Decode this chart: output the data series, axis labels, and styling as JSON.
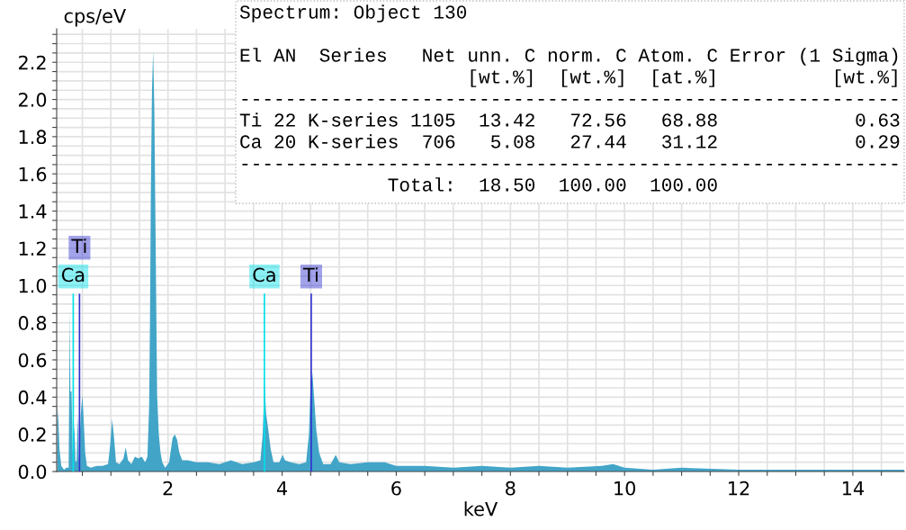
{
  "chart_data": {
    "type": "area",
    "ylabel": "cps/eV",
    "xlabel": "keV",
    "series": [
      {
        "color": "#42a5c8",
        "x": [
          0.06,
          0.08,
          0.1,
          0.13,
          0.18,
          0.22,
          0.26,
          0.28,
          0.29,
          0.31,
          0.33,
          0.36,
          0.38,
          0.4,
          0.42,
          0.44,
          0.47,
          0.5,
          0.52,
          0.55,
          0.58,
          0.65,
          0.75,
          0.85,
          0.95,
          0.99,
          1.02,
          1.05,
          1.09,
          1.15,
          1.22,
          1.26,
          1.3,
          1.36,
          1.42,
          1.48,
          1.54,
          1.6,
          1.64,
          1.67,
          1.685,
          1.7,
          1.72,
          1.74,
          1.76,
          1.78,
          1.8,
          1.81,
          1.84,
          1.87,
          1.9,
          1.95,
          2.02,
          2.08,
          2.12,
          2.16,
          2.2,
          2.25,
          2.35,
          2.5,
          2.7,
          2.9,
          3.1,
          3.3,
          3.5,
          3.62,
          3.66,
          3.69,
          3.72,
          3.76,
          3.8,
          3.85,
          3.95,
          4.01,
          4.05,
          4.15,
          4.3,
          4.42,
          4.47,
          4.5,
          4.53,
          4.56,
          4.6,
          4.65,
          4.72,
          4.85,
          4.94,
          5.0,
          5.2,
          5.5,
          5.8,
          6.0,
          6.5,
          7.0,
          7.5,
          8.0,
          8.5,
          9.0,
          9.6,
          9.8,
          10.0,
          10.5,
          11.0,
          12.0,
          13.0,
          14.0,
          14.9
        ],
        "values": [
          0.36,
          0.27,
          0.12,
          0.03,
          0.01,
          0.02,
          0.02,
          0.87,
          0.43,
          0.43,
          0.1,
          0.25,
          0.05,
          0.06,
          0.31,
          0.05,
          0.3,
          0.41,
          0.3,
          0.1,
          0.03,
          0.02,
          0.03,
          0.03,
          0.04,
          0.15,
          0.28,
          0.2,
          0.05,
          0.04,
          0.07,
          0.13,
          0.06,
          0.04,
          0.08,
          0.07,
          0.08,
          0.05,
          0.08,
          0.35,
          0.82,
          1.5,
          2.05,
          2.26,
          1.97,
          1.36,
          0.73,
          0.41,
          0.2,
          0.1,
          0.05,
          0.02,
          0.05,
          0.18,
          0.2,
          0.17,
          0.1,
          0.06,
          0.06,
          0.05,
          0.05,
          0.04,
          0.06,
          0.04,
          0.05,
          0.06,
          0.2,
          0.47,
          0.31,
          0.22,
          0.12,
          0.05,
          0.05,
          0.09,
          0.06,
          0.05,
          0.04,
          0.05,
          0.2,
          0.48,
          0.53,
          0.4,
          0.22,
          0.1,
          0.04,
          0.04,
          0.09,
          0.05,
          0.04,
          0.05,
          0.05,
          0.03,
          0.03,
          0.02,
          0.03,
          0.02,
          0.03,
          0.02,
          0.03,
          0.04,
          0.02,
          0.01,
          0.02,
          0.01,
          0.01,
          0.01,
          0.01
        ]
      }
    ],
    "xlim": [
      0.05,
      14.9
    ],
    "ylim": [
      0,
      2.38
    ],
    "xticks": [
      {
        "value": 0.5,
        "label": null
      },
      {
        "value": 1,
        "label": null
      },
      {
        "value": 1.5,
        "label": null
      },
      2,
      {
        "value": 2.5,
        "label": null
      },
      {
        "value": 3,
        "label": null
      },
      {
        "value": 3.5,
        "label": null
      },
      4,
      {
        "value": 4.5,
        "label": null
      },
      {
        "value": 5,
        "label": null
      },
      {
        "value": 5.5,
        "label": null
      },
      6,
      {
        "value": 6.5,
        "label": null
      },
      {
        "value": 7,
        "label": null
      },
      {
        "value": 7.5,
        "label": null
      },
      8,
      {
        "value": 8.5,
        "label": null
      },
      {
        "value": 9,
        "label": null
      },
      {
        "value": 9.5,
        "label": null
      },
      10,
      {
        "value": 10.5,
        "label": null
      },
      {
        "value": 11,
        "label": null
      },
      {
        "value": 11.5,
        "label": null
      },
      12,
      {
        "value": 12.5,
        "label": null
      },
      {
        "value": 13,
        "label": null
      },
      {
        "value": 13.5,
        "label": null
      },
      14,
      {
        "value": 14.5,
        "label": null
      }
    ],
    "yticks": [
      {
        "value": 0,
        "label": "0.0"
      },
      {
        "value": 0.05,
        "label": null
      },
      {
        "value": 0.1,
        "label": null
      },
      {
        "value": 0.15,
        "label": null
      },
      0.2,
      {
        "value": 0.25,
        "label": null
      },
      {
        "value": 0.3,
        "label": null
      },
      {
        "value": 0.35,
        "label": null
      },
      0.4,
      {
        "value": 0.45,
        "label": null
      },
      {
        "value": 0.5,
        "label": null
      },
      {
        "value": 0.55,
        "label": null
      },
      0.6,
      {
        "value": 0.65,
        "label": null
      },
      {
        "value": 0.7,
        "label": null
      },
      {
        "value": 0.75,
        "label": null
      },
      0.8,
      {
        "value": 0.85,
        "label": null
      },
      {
        "value": 0.9,
        "label": null
      },
      {
        "value": 0.95,
        "label": null
      },
      {
        "value": 1,
        "label": "1.0"
      },
      {
        "value": 1.05,
        "label": null
      },
      {
        "value": 1.1,
        "label": null
      },
      {
        "value": 1.15,
        "label": null
      },
      1.2,
      {
        "value": 1.25,
        "label": null
      },
      {
        "value": 1.3,
        "label": null
      },
      {
        "value": 1.35,
        "label": null
      },
      1.4,
      {
        "value": 1.45,
        "label": null
      },
      {
        "value": 1.5,
        "label": null
      },
      {
        "value": 1.55,
        "label": null
      },
      1.6,
      {
        "value": 1.65,
        "label": null
      },
      {
        "value": 1.7,
        "label": null
      },
      {
        "value": 1.75,
        "label": null
      },
      1.8,
      {
        "value": 1.85,
        "label": null
      },
      {
        "value": 1.9,
        "label": null
      },
      {
        "value": 1.95,
        "label": null
      },
      {
        "value": 2,
        "label": "2.0"
      },
      {
        "value": 2.05,
        "label": null
      },
      {
        "value": 2.1,
        "label": null
      },
      {
        "value": 2.15,
        "label": null
      },
      2.2,
      {
        "value": 2.25,
        "label": null
      },
      {
        "value": 2.3,
        "label": null
      },
      {
        "value": 2.35,
        "label": null
      }
    ],
    "grid": true,
    "ref_lines": [
      {
        "axis": "x",
        "value": 0.34,
        "label": "Ca",
        "color": "#00e0e8"
      },
      {
        "axis": "x",
        "value": 0.45,
        "label": "Ti",
        "color": "#3030d0"
      },
      {
        "axis": "x",
        "value": 3.69,
        "label": "Ca",
        "color": "#00e0e8"
      },
      {
        "axis": "x",
        "value": 4.51,
        "label": "Ti",
        "color": "#3030d0"
      }
    ],
    "annotations": [
      "Spectrum: Object 130",
      "El AN  Series   Net unn. C norm. C Atom. C Error (1 Sigma)",
      "                    [wt.%]  [wt.%]  [at.%]          [wt.%]",
      "----------------------------------------------------------",
      "Ti 22 K-series 1105  13.42   72.56   68.88            0.63",
      "Ca 20 K-series  706   5.08   27.44   31.12            0.29",
      "----------------------------------------------------------",
      "             Total:  18.50  100.00  100.00"
    ]
  }
}
